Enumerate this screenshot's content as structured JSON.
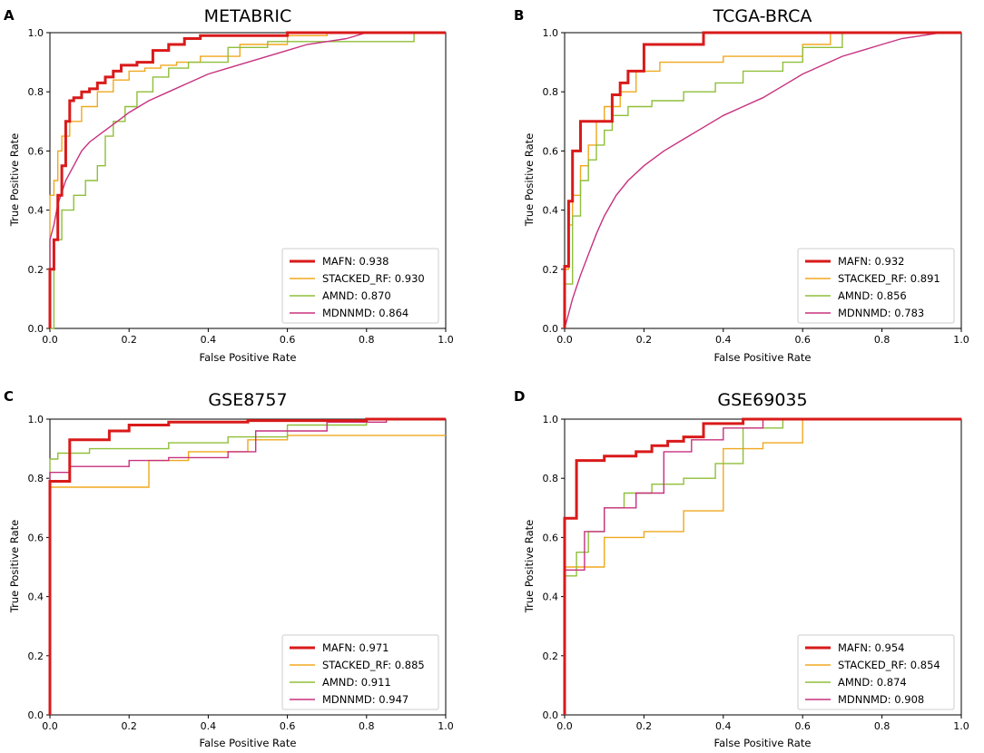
{
  "chart_data": [
    {
      "type": "line",
      "panel": "A",
      "title": "METABRIC",
      "xlabel": "False Positive Rate",
      "ylabel": "True Positive Rate",
      "xlim": [
        0,
        1
      ],
      "ylim": [
        0,
        1
      ],
      "xticks": [
        "0.0",
        "0.2",
        "0.4",
        "0.6",
        "0.8",
        "1.0"
      ],
      "yticks": [
        "0.0",
        "0.2",
        "0.4",
        "0.6",
        "0.8",
        "1.0"
      ],
      "legend_position": "lower-right",
      "series": [
        {
          "name": "MAFN",
          "auc": "0.938",
          "label": "MAFN: 0.938",
          "color": "#d91a1a",
          "bold": true,
          "x": [
            0,
            0,
            0.01,
            0.01,
            0.02,
            0.02,
            0.03,
            0.03,
            0.04,
            0.04,
            0.05,
            0.05,
            0.06,
            0.06,
            0.08,
            0.08,
            0.1,
            0.1,
            0.12,
            0.12,
            0.14,
            0.14,
            0.16,
            0.16,
            0.18,
            0.18,
            0.22,
            0.22,
            0.26,
            0.26,
            0.3,
            0.3,
            0.34,
            0.34,
            0.38,
            0.38,
            0.6,
            0.6,
            1
          ],
          "y": [
            0,
            0.2,
            0.2,
            0.3,
            0.3,
            0.45,
            0.45,
            0.55,
            0.55,
            0.7,
            0.7,
            0.77,
            0.77,
            0.78,
            0.78,
            0.8,
            0.8,
            0.81,
            0.81,
            0.83,
            0.83,
            0.85,
            0.85,
            0.87,
            0.87,
            0.89,
            0.89,
            0.9,
            0.9,
            0.94,
            0.94,
            0.96,
            0.96,
            0.98,
            0.98,
            0.99,
            0.99,
            1,
            1
          ]
        },
        {
          "name": "STACKED_RF",
          "auc": "0.930",
          "label": "STACKED_RF: 0.930",
          "color": "#f0a81e",
          "bold": false,
          "x": [
            0,
            0,
            0.01,
            0.01,
            0.02,
            0.02,
            0.03,
            0.03,
            0.05,
            0.05,
            0.08,
            0.08,
            0.12,
            0.12,
            0.16,
            0.16,
            0.2,
            0.2,
            0.24,
            0.24,
            0.28,
            0.28,
            0.32,
            0.32,
            0.38,
            0.38,
            0.48,
            0.48,
            0.6,
            0.6,
            0.7,
            0.7,
            1
          ],
          "y": [
            0,
            0.45,
            0.45,
            0.5,
            0.5,
            0.6,
            0.6,
            0.65,
            0.65,
            0.7,
            0.7,
            0.75,
            0.75,
            0.8,
            0.8,
            0.84,
            0.84,
            0.87,
            0.87,
            0.88,
            0.88,
            0.89,
            0.89,
            0.9,
            0.9,
            0.92,
            0.92,
            0.96,
            0.96,
            0.99,
            0.99,
            1,
            1
          ]
        },
        {
          "name": "AMND",
          "auc": "0.870",
          "label": "AMND: 0.870",
          "color": "#8fbf3a",
          "bold": false,
          "x": [
            0,
            0.01,
            0.01,
            0.03,
            0.03,
            0.06,
            0.06,
            0.09,
            0.09,
            0.12,
            0.12,
            0.14,
            0.14,
            0.16,
            0.16,
            0.19,
            0.19,
            0.22,
            0.22,
            0.26,
            0.26,
            0.3,
            0.3,
            0.35,
            0.35,
            0.45,
            0.45,
            0.55,
            0.55,
            0.92,
            0.92,
            1
          ],
          "y": [
            0,
            0,
            0.3,
            0.3,
            0.4,
            0.4,
            0.45,
            0.45,
            0.5,
            0.5,
            0.55,
            0.55,
            0.65,
            0.65,
            0.7,
            0.7,
            0.75,
            0.75,
            0.8,
            0.8,
            0.85,
            0.85,
            0.88,
            0.88,
            0.9,
            0.9,
            0.95,
            0.95,
            0.97,
            0.97,
            1,
            1
          ]
        },
        {
          "name": "MDNNMD",
          "auc": "0.864",
          "label": "MDNNMD: 0.864",
          "color": "#c7317f",
          "bold": false,
          "x": [
            0,
            0,
            0.01,
            0.02,
            0.04,
            0.06,
            0.08,
            0.1,
            0.13,
            0.16,
            0.2,
            0.25,
            0.3,
            0.35,
            0.4,
            0.45,
            0.5,
            0.55,
            0.6,
            0.65,
            0.7,
            0.75,
            0.8,
            1
          ],
          "y": [
            0,
            0.3,
            0.35,
            0.42,
            0.5,
            0.55,
            0.6,
            0.63,
            0.66,
            0.69,
            0.73,
            0.77,
            0.8,
            0.83,
            0.86,
            0.88,
            0.9,
            0.92,
            0.94,
            0.96,
            0.97,
            0.98,
            1,
            1
          ]
        }
      ]
    },
    {
      "type": "line",
      "panel": "B",
      "title": "TCGA-BRCA",
      "xlabel": "False Positive Rate",
      "ylabel": "True Positive Rate",
      "xlim": [
        0,
        1
      ],
      "ylim": [
        0,
        1
      ],
      "xticks": [
        "0.0",
        "0.2",
        "0.4",
        "0.6",
        "0.8",
        "1.0"
      ],
      "yticks": [
        "0.0",
        "0.2",
        "0.4",
        "0.6",
        "0.8",
        "1.0"
      ],
      "legend_position": "lower-right",
      "series": [
        {
          "name": "MAFN",
          "auc": "0.932",
          "label": "MAFN: 0.932",
          "color": "#d91a1a",
          "bold": true,
          "x": [
            0,
            0,
            0.01,
            0.01,
            0.02,
            0.02,
            0.04,
            0.04,
            0.06,
            0.06,
            0.12,
            0.12,
            0.14,
            0.14,
            0.16,
            0.16,
            0.2,
            0.2,
            0.35,
            0.35,
            1
          ],
          "y": [
            0,
            0.21,
            0.21,
            0.43,
            0.43,
            0.6,
            0.6,
            0.7,
            0.7,
            0.7,
            0.7,
            0.79,
            0.79,
            0.83,
            0.83,
            0.87,
            0.87,
            0.96,
            0.96,
            1,
            1
          ]
        },
        {
          "name": "STACKED_RF",
          "auc": "0.891",
          "label": "STACKED_RF: 0.891",
          "color": "#f0a81e",
          "bold": false,
          "x": [
            0,
            0,
            0.01,
            0.01,
            0.02,
            0.02,
            0.04,
            0.04,
            0.06,
            0.06,
            0.08,
            0.08,
            0.1,
            0.1,
            0.14,
            0.14,
            0.18,
            0.18,
            0.24,
            0.24,
            0.4,
            0.4,
            0.6,
            0.6,
            0.67,
            0.67,
            1
          ],
          "y": [
            0,
            0.2,
            0.2,
            0.35,
            0.35,
            0.45,
            0.45,
            0.55,
            0.55,
            0.62,
            0.62,
            0.7,
            0.7,
            0.75,
            0.75,
            0.8,
            0.8,
            0.87,
            0.87,
            0.9,
            0.9,
            0.92,
            0.92,
            0.96,
            0.96,
            1,
            1
          ]
        },
        {
          "name": "AMND",
          "auc": "0.856",
          "label": "AMND: 0.856",
          "color": "#8fbf3a",
          "bold": false,
          "x": [
            0,
            0,
            0.02,
            0.02,
            0.04,
            0.04,
            0.06,
            0.06,
            0.08,
            0.08,
            0.1,
            0.1,
            0.12,
            0.12,
            0.16,
            0.16,
            0.22,
            0.22,
            0.3,
            0.3,
            0.38,
            0.38,
            0.45,
            0.45,
            0.55,
            0.55,
            0.6,
            0.6,
            0.7,
            0.7,
            1
          ],
          "y": [
            0,
            0.15,
            0.15,
            0.38,
            0.38,
            0.5,
            0.5,
            0.57,
            0.57,
            0.62,
            0.62,
            0.67,
            0.67,
            0.72,
            0.72,
            0.75,
            0.75,
            0.77,
            0.77,
            0.8,
            0.8,
            0.83,
            0.83,
            0.87,
            0.87,
            0.9,
            0.9,
            0.95,
            0.95,
            1,
            1
          ]
        },
        {
          "name": "MDNNMD",
          "auc": "0.783",
          "label": "MDNNMD: 0.783",
          "color": "#c7317f",
          "bold": false,
          "x": [
            0,
            0.01,
            0.02,
            0.04,
            0.06,
            0.08,
            0.1,
            0.13,
            0.16,
            0.2,
            0.25,
            0.3,
            0.35,
            0.4,
            0.45,
            0.5,
            0.55,
            0.6,
            0.65,
            0.7,
            0.75,
            0.8,
            0.85,
            0.9,
            0.95,
            1
          ],
          "y": [
            0,
            0.05,
            0.1,
            0.18,
            0.25,
            0.32,
            0.38,
            0.45,
            0.5,
            0.55,
            0.6,
            0.64,
            0.68,
            0.72,
            0.75,
            0.78,
            0.82,
            0.86,
            0.89,
            0.92,
            0.94,
            0.96,
            0.98,
            0.99,
            1,
            1
          ]
        }
      ]
    },
    {
      "type": "line",
      "panel": "C",
      "title": "GSE8757",
      "xlabel": "False Positive Rate",
      "ylabel": "True Positive Rate",
      "xlim": [
        0,
        1
      ],
      "ylim": [
        0,
        1
      ],
      "xticks": [
        "0.0",
        "0.2",
        "0.4",
        "0.6",
        "0.8",
        "1.0"
      ],
      "yticks": [
        "0.0",
        "0.2",
        "0.4",
        "0.6",
        "0.8",
        "1.0"
      ],
      "legend_position": "lower-right",
      "series": [
        {
          "name": "MAFN",
          "auc": "0.971",
          "label": "MAFN: 0.971",
          "color": "#d91a1a",
          "bold": true,
          "x": [
            0,
            0,
            0.05,
            0.05,
            0.15,
            0.15,
            0.2,
            0.2,
            0.3,
            0.3,
            0.5,
            0.5,
            0.8,
            0.8,
            1
          ],
          "y": [
            0,
            0.79,
            0.79,
            0.93,
            0.93,
            0.96,
            0.96,
            0.98,
            0.98,
            0.99,
            0.99,
            0.995,
            0.995,
            1,
            1
          ]
        },
        {
          "name": "STACKED_RF",
          "auc": "0.885",
          "label": "STACKED_RF: 0.885",
          "color": "#f0a81e",
          "bold": false,
          "x": [
            0,
            0,
            0.25,
            0.25,
            0.35,
            0.35,
            0.5,
            0.5,
            0.6,
            0.6,
            1
          ],
          "y": [
            0,
            0.77,
            0.77,
            0.86,
            0.86,
            0.89,
            0.89,
            0.93,
            0.93,
            0.945,
            0.945
          ]
        },
        {
          "name": "AMND",
          "auc": "0.911",
          "label": "AMND: 0.911",
          "color": "#8fbf3a",
          "bold": false,
          "x": [
            0,
            0,
            0.02,
            0.02,
            0.1,
            0.1,
            0.3,
            0.3,
            0.45,
            0.45,
            0.6,
            0.6,
            0.8,
            0.8,
            1
          ],
          "y": [
            0,
            0.865,
            0.865,
            0.885,
            0.885,
            0.9,
            0.9,
            0.92,
            0.92,
            0.94,
            0.94,
            0.98,
            0.98,
            1,
            1
          ]
        },
        {
          "name": "MDNNMD",
          "auc": "0.947",
          "label": "MDNNMD: 0.947",
          "color": "#c7317f",
          "bold": false,
          "x": [
            0,
            0,
            0.05,
            0.05,
            0.2,
            0.2,
            0.3,
            0.3,
            0.45,
            0.45,
            0.52,
            0.52,
            0.7,
            0.7,
            0.85,
            0.85,
            1
          ],
          "y": [
            0,
            0.82,
            0.82,
            0.84,
            0.84,
            0.86,
            0.86,
            0.87,
            0.87,
            0.89,
            0.89,
            0.96,
            0.96,
            0.99,
            0.99,
            1,
            1
          ]
        }
      ]
    },
    {
      "type": "line",
      "panel": "D",
      "title": "GSE69035",
      "xlabel": "False Positive Rate",
      "ylabel": "True Positive Rate",
      "xlim": [
        0,
        1
      ],
      "ylim": [
        0,
        1
      ],
      "xticks": [
        "0.0",
        "0.2",
        "0.4",
        "0.6",
        "0.8",
        "1.0"
      ],
      "yticks": [
        "0.0",
        "0.2",
        "0.4",
        "0.6",
        "0.8",
        "1.0"
      ],
      "legend_position": "lower-right",
      "series": [
        {
          "name": "MAFN",
          "auc": "0.954",
          "label": "MAFN: 0.954",
          "color": "#d91a1a",
          "bold": true,
          "x": [
            0,
            0,
            0.03,
            0.03,
            0.1,
            0.1,
            0.18,
            0.18,
            0.22,
            0.22,
            0.26,
            0.26,
            0.3,
            0.3,
            0.35,
            0.35,
            0.45,
            0.45,
            1
          ],
          "y": [
            0,
            0.665,
            0.665,
            0.86,
            0.86,
            0.875,
            0.875,
            0.89,
            0.89,
            0.91,
            0.91,
            0.925,
            0.925,
            0.94,
            0.94,
            0.985,
            0.985,
            1,
            1
          ]
        },
        {
          "name": "STACKED_RF",
          "auc": "0.854",
          "label": "STACKED_RF: 0.854",
          "color": "#f0a81e",
          "bold": false,
          "x": [
            0,
            0,
            0.1,
            0.1,
            0.2,
            0.2,
            0.3,
            0.3,
            0.4,
            0.4,
            0.5,
            0.5,
            0.6,
            0.6,
            1
          ],
          "y": [
            0,
            0.5,
            0.5,
            0.6,
            0.6,
            0.62,
            0.62,
            0.69,
            0.69,
            0.9,
            0.9,
            0.92,
            0.92,
            1,
            1
          ]
        },
        {
          "name": "AMND",
          "auc": "0.874",
          "label": "AMND: 0.874",
          "color": "#8fbf3a",
          "bold": false,
          "x": [
            0,
            0,
            0.03,
            0.03,
            0.06,
            0.06,
            0.1,
            0.1,
            0.15,
            0.15,
            0.22,
            0.22,
            0.3,
            0.3,
            0.38,
            0.38,
            0.45,
            0.45,
            0.55,
            0.55,
            1
          ],
          "y": [
            0,
            0.47,
            0.47,
            0.55,
            0.55,
            0.62,
            0.62,
            0.7,
            0.7,
            0.75,
            0.75,
            0.78,
            0.78,
            0.8,
            0.8,
            0.85,
            0.85,
            0.97,
            0.97,
            1,
            1
          ]
        },
        {
          "name": "MDNNMD",
          "auc": "0.908",
          "label": "MDNNMD: 0.908",
          "color": "#c7317f",
          "bold": false,
          "x": [
            0,
            0,
            0.05,
            0.05,
            0.1,
            0.1,
            0.18,
            0.18,
            0.25,
            0.25,
            0.32,
            0.32,
            0.4,
            0.4,
            0.5,
            0.5,
            1
          ],
          "y": [
            0,
            0.49,
            0.49,
            0.62,
            0.62,
            0.7,
            0.7,
            0.75,
            0.75,
            0.89,
            0.89,
            0.93,
            0.93,
            0.97,
            0.97,
            1,
            1
          ]
        }
      ]
    }
  ]
}
